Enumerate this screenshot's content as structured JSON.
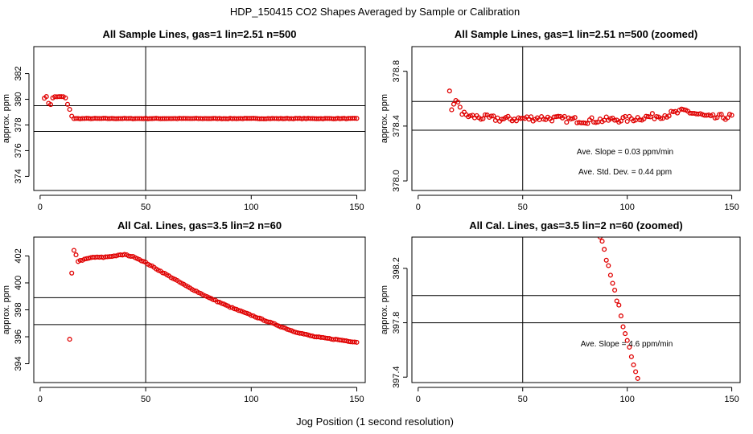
{
  "figure": {
    "title": "HDP_150415  CO2 Shapes Averaged by Sample or Calibration",
    "xlabel": "Jog Position (1 second resolution)"
  },
  "colors": {
    "points": "#e00000",
    "axes": "#000000",
    "background": "#ffffff"
  },
  "chart_data": [
    {
      "type": "scatter",
      "title": "All Sample Lines, gas=1 lin=2.51 n=500",
      "ylabel": "approx. ppm",
      "xlim": [
        -3,
        154
      ],
      "ylim": [
        372.9,
        384.1
      ],
      "xticks": [
        0,
        50,
        100,
        150
      ],
      "yticks": [
        374,
        376,
        378,
        380,
        382
      ],
      "vline": 50,
      "hlines": [
        379.5,
        377.5
      ],
      "annotations": [],
      "keyframes": [
        [
          2,
          380.1
        ],
        [
          3,
          380.2
        ],
        [
          4,
          379.7
        ],
        [
          5,
          379.6
        ],
        [
          6,
          380.1
        ],
        [
          7,
          380.2
        ],
        [
          8,
          380.2
        ],
        [
          9,
          380.2
        ],
        [
          10,
          380.2
        ],
        [
          11,
          380.2
        ],
        [
          12,
          380.1
        ],
        [
          13,
          379.6
        ],
        [
          14,
          379.2
        ],
        [
          15,
          378.7
        ],
        [
          16,
          378.5
        ],
        [
          20,
          378.5
        ],
        [
          150,
          378.5
        ]
      ],
      "range": [
        2,
        150
      ],
      "noise": 0.02
    },
    {
      "type": "scatter",
      "title": "All Sample Lines, gas=1 lin=2.51 n=500 (zoomed)",
      "ylabel": "approx. ppm",
      "xlim": [
        -3,
        154
      ],
      "ylim": [
        377.93,
        378.98
      ],
      "xticks": [
        0,
        50,
        100,
        150
      ],
      "yticks": [
        378.0,
        378.4,
        378.8
      ],
      "vline": 50,
      "hlines": [
        378.58,
        378.37
      ],
      "annotations": [
        "Ave. Slope =  0.03  ppm/min",
        "Ave. Std. Dev. =  0.44  ppm"
      ],
      "keyframes": [
        [
          15,
          378.66
        ],
        [
          16,
          378.53
        ],
        [
          17,
          378.55
        ],
        [
          18,
          378.57
        ],
        [
          19,
          378.58
        ],
        [
          20,
          378.55
        ],
        [
          21,
          378.49
        ],
        [
          25,
          378.47
        ],
        [
          40,
          378.45
        ],
        [
          60,
          378.46
        ],
        [
          80,
          378.44
        ],
        [
          100,
          378.45
        ],
        [
          118,
          378.48
        ],
        [
          128,
          378.51
        ],
        [
          140,
          378.46
        ],
        [
          150,
          378.47
        ]
      ],
      "range": [
        15,
        150
      ],
      "noise": 0.022
    },
    {
      "type": "scatter",
      "title": "All Cal. Lines, gas=3.5 lin=2 n=60",
      "ylabel": "approx. ppm",
      "xlim": [
        -3,
        154
      ],
      "ylim": [
        392.6,
        403.4
      ],
      "xticks": [
        0,
        50,
        100,
        150
      ],
      "yticks": [
        394,
        396,
        398,
        400,
        402
      ],
      "vline": 50,
      "hlines": [
        398.9,
        396.9
      ],
      "annotations": [],
      "keyframes": [
        [
          14,
          395.8
        ],
        [
          15,
          400.7
        ],
        [
          16,
          402.4
        ],
        [
          17,
          402.1
        ],
        [
          18,
          401.6
        ],
        [
          20,
          401.7
        ],
        [
          25,
          401.9
        ],
        [
          30,
          401.9
        ],
        [
          35,
          402.0
        ],
        [
          40,
          402.1
        ],
        [
          45,
          401.9
        ],
        [
          50,
          401.5
        ],
        [
          60,
          400.6
        ],
        [
          70,
          399.7
        ],
        [
          80,
          398.9
        ],
        [
          90,
          398.2
        ],
        [
          100,
          397.6
        ],
        [
          110,
          397.0
        ],
        [
          120,
          396.4
        ],
        [
          130,
          396.0
        ],
        [
          140,
          395.8
        ],
        [
          145,
          395.7
        ],
        [
          150,
          395.6
        ]
      ],
      "range": [
        14,
        150
      ],
      "noise": 0.03
    },
    {
      "type": "scatter",
      "title": "All Cal. Lines, gas=3.5 lin=2 n=60 (zoomed)",
      "ylabel": "approx. ppm",
      "xlim": [
        -3,
        154
      ],
      "ylim": [
        397.36,
        398.43
      ],
      "xticks": [
        0,
        50,
        100,
        150
      ],
      "yticks": [
        397.4,
        397.8,
        398.2
      ],
      "vline": 50,
      "hlines": [
        398.0,
        397.8
      ],
      "annotations": [
        "Ave. Slope =  4.6  ppm/min"
      ],
      "keyframes": [
        [
          87,
          398.43
        ],
        [
          88,
          398.4
        ],
        [
          89,
          398.34
        ],
        [
          90,
          398.26
        ],
        [
          91,
          398.22
        ],
        [
          92,
          398.15
        ],
        [
          93,
          398.09
        ],
        [
          94,
          398.04
        ],
        [
          95,
          397.96
        ],
        [
          96,
          397.93
        ],
        [
          97,
          397.85
        ],
        [
          98,
          397.77
        ],
        [
          99,
          397.72
        ],
        [
          100,
          397.67
        ],
        [
          101,
          397.62
        ],
        [
          102,
          397.55
        ],
        [
          103,
          397.49
        ],
        [
          104,
          397.44
        ],
        [
          105,
          397.39
        ]
      ],
      "range": [
        87,
        105
      ],
      "noise": 0.0
    }
  ]
}
